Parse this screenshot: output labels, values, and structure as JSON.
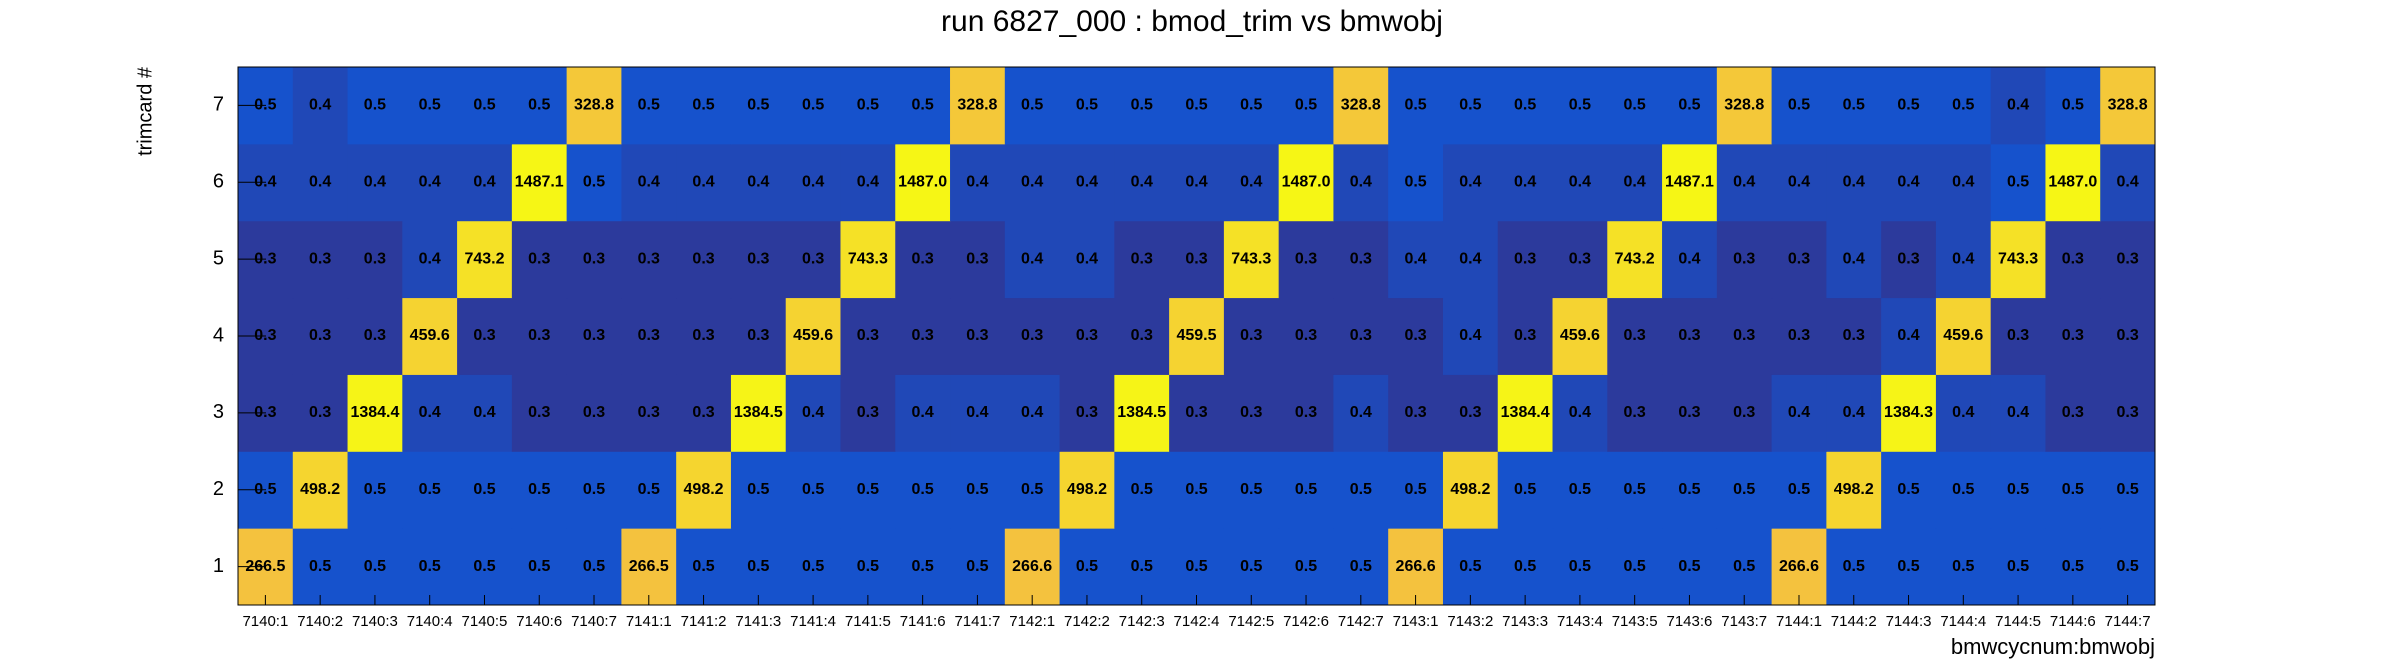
{
  "chart_data": {
    "type": "heatmap",
    "title": "run 6827_000 : bmod_trim vs bmwobj",
    "x_label": "bmwcycnum:bmwobj",
    "y_label": "trimcard #",
    "categories": [
      "7140:1",
      "7140:2",
      "7140:3",
      "7140:4",
      "7140:5",
      "7140:6",
      "7140:7",
      "7141:1",
      "7141:2",
      "7141:3",
      "7141:4",
      "7141:5",
      "7141:6",
      "7141:7",
      "7142:1",
      "7142:2",
      "7142:3",
      "7142:4",
      "7142:5",
      "7142:6",
      "7142:7",
      "7143:1",
      "7143:2",
      "7143:3",
      "7143:4",
      "7143:5",
      "7143:6",
      "7143:7",
      "7144:1",
      "7144:2",
      "7144:3",
      "7144:4",
      "7144:5",
      "7144:6",
      "7144:7"
    ],
    "y_categories": [
      1,
      2,
      3,
      4,
      5,
      6,
      7
    ],
    "values": [
      [
        266.5,
        0.5,
        0.5,
        0.5,
        0.5,
        0.5,
        0.5,
        266.5,
        0.5,
        0.5,
        0.5,
        0.5,
        0.5,
        0.5,
        266.6,
        0.5,
        0.5,
        0.5,
        0.5,
        0.5,
        0.5,
        266.6,
        0.5,
        0.5,
        0.5,
        0.5,
        0.5,
        0.5,
        266.6,
        0.5,
        0.5,
        0.5,
        0.5,
        0.5,
        0.5
      ],
      [
        0.5,
        498.2,
        0.5,
        0.5,
        0.5,
        0.5,
        0.5,
        0.5,
        498.2,
        0.5,
        0.5,
        0.5,
        0.5,
        0.5,
        0.5,
        498.2,
        0.5,
        0.5,
        0.5,
        0.5,
        0.5,
        0.5,
        498.2,
        0.5,
        0.5,
        0.5,
        0.5,
        0.5,
        0.5,
        498.2,
        0.5,
        0.5,
        0.5,
        0.5,
        0.5
      ],
      [
        0.3,
        0.3,
        1384.4,
        0.4,
        0.4,
        0.3,
        0.3,
        0.3,
        0.3,
        1384.5,
        0.4,
        0.3,
        0.4,
        0.4,
        0.4,
        0.3,
        1384.5,
        0.3,
        0.3,
        0.3,
        0.4,
        0.3,
        0.3,
        1384.4,
        0.4,
        0.3,
        0.3,
        0.3,
        0.4,
        0.4,
        1384.3,
        0.4,
        0.4,
        0.3,
        0.3
      ],
      [
        0.3,
        0.3,
        0.3,
        459.6,
        0.3,
        0.3,
        0.3,
        0.3,
        0.3,
        0.3,
        459.6,
        0.3,
        0.3,
        0.3,
        0.3,
        0.3,
        0.3,
        459.5,
        0.3,
        0.3,
        0.3,
        0.3,
        0.4,
        0.3,
        459.6,
        0.3,
        0.3,
        0.3,
        0.3,
        0.3,
        0.4,
        459.6,
        0.3,
        0.3,
        0.3
      ],
      [
        0.3,
        0.3,
        0.3,
        0.4,
        743.2,
        0.3,
        0.3,
        0.3,
        0.3,
        0.3,
        0.3,
        743.3,
        0.3,
        0.3,
        0.4,
        0.4,
        0.3,
        0.3,
        743.3,
        0.3,
        0.3,
        0.4,
        0.4,
        0.3,
        0.3,
        743.2,
        0.4,
        0.3,
        0.3,
        0.4,
        0.3,
        0.4,
        743.3,
        0.3,
        0.3
      ],
      [
        0.4,
        0.4,
        0.4,
        0.4,
        0.4,
        1487.1,
        0.5,
        0.4,
        0.4,
        0.4,
        0.4,
        0.4,
        1487.0,
        0.4,
        0.4,
        0.4,
        0.4,
        0.4,
        0.4,
        1487.0,
        0.4,
        0.5,
        0.4,
        0.4,
        0.4,
        0.4,
        1487.1,
        0.4,
        0.4,
        0.4,
        0.4,
        0.4,
        0.5,
        1487.0,
        0.4
      ],
      [
        0.5,
        0.4,
        0.5,
        0.5,
        0.5,
        0.5,
        328.8,
        0.5,
        0.5,
        0.5,
        0.5,
        0.5,
        0.5,
        328.8,
        0.5,
        0.5,
        0.5,
        0.5,
        0.5,
        0.5,
        328.8,
        0.5,
        0.5,
        0.5,
        0.5,
        0.5,
        0.5,
        328.8,
        0.5,
        0.5,
        0.5,
        0.5,
        0.4,
        0.5,
        328.8
      ]
    ],
    "value_labels": [
      [
        "266.5",
        "0.5",
        "0.5",
        "0.5",
        "0.5",
        "0.5",
        "0.5",
        "266.5",
        "0.5",
        "0.5",
        "0.5",
        "0.5",
        "0.5",
        "0.5",
        "266.6",
        "0.5",
        "0.5",
        "0.5",
        "0.5",
        "0.5",
        "0.5",
        "266.6",
        "0.5",
        "0.5",
        "0.5",
        "0.5",
        "0.5",
        "0.5",
        "266.6",
        "0.5",
        "0.5",
        "0.5",
        "0.5",
        "0.5",
        "0.5"
      ],
      [
        "0.5",
        "498.2",
        "0.5",
        "0.5",
        "0.5",
        "0.5",
        "0.5",
        "0.5",
        "498.2",
        "0.5",
        "0.5",
        "0.5",
        "0.5",
        "0.5",
        "0.5",
        "498.2",
        "0.5",
        "0.5",
        "0.5",
        "0.5",
        "0.5",
        "0.5",
        "498.2",
        "0.5",
        "0.5",
        "0.5",
        "0.5",
        "0.5",
        "0.5",
        "498.2",
        "0.5",
        "0.5",
        "0.5",
        "0.5",
        "0.5"
      ],
      [
        "0.3",
        "0.3",
        "1384.4",
        "0.4",
        "0.4",
        "0.3",
        "0.3",
        "0.3",
        "0.3",
        "1384.5",
        "0.4",
        "0.3",
        "0.4",
        "0.4",
        "0.4",
        "0.3",
        "1384.5",
        "0.3",
        "0.3",
        "0.3",
        "0.4",
        "0.3",
        "0.3",
        "1384.4",
        "0.4",
        "0.3",
        "0.3",
        "0.3",
        "0.4",
        "0.4",
        "1384.3",
        "0.4",
        "0.4",
        "0.3",
        "0.3"
      ],
      [
        "0.3",
        "0.3",
        "0.3",
        "459.6",
        "0.3",
        "0.3",
        "0.3",
        "0.3",
        "0.3",
        "0.3",
        "459.6",
        "0.3",
        "0.3",
        "0.3",
        "0.3",
        "0.3",
        "0.3",
        "459.5",
        "0.3",
        "0.3",
        "0.3",
        "0.3",
        "0.4",
        "0.3",
        "459.6",
        "0.3",
        "0.3",
        "0.3",
        "0.3",
        "0.3",
        "0.4",
        "459.6",
        "0.3",
        "0.3",
        "0.3"
      ],
      [
        "0.3",
        "0.3",
        "0.3",
        "0.4",
        "743.2",
        "0.3",
        "0.3",
        "0.3",
        "0.3",
        "0.3",
        "0.3",
        "743.3",
        "0.3",
        "0.3",
        "0.4",
        "0.4",
        "0.3",
        "0.3",
        "743.3",
        "0.3",
        "0.3",
        "0.4",
        "0.4",
        "0.3",
        "0.3",
        "743.2",
        "0.4",
        "0.3",
        "0.3",
        "0.4",
        "0.3",
        "0.4",
        "743.3",
        "0.3",
        "0.3"
      ],
      [
        "0.4",
        "0.4",
        "0.4",
        "0.4",
        "0.4",
        "1487.1",
        "0.5",
        "0.4",
        "0.4",
        "0.4",
        "0.4",
        "0.4",
        "1487.0",
        "0.4",
        "0.4",
        "0.4",
        "0.4",
        "0.4",
        "0.4",
        "1487.0",
        "0.4",
        "0.5",
        "0.4",
        "0.4",
        "0.4",
        "0.4",
        "1487.1",
        "0.4",
        "0.4",
        "0.4",
        "0.4",
        "0.4",
        "0.5",
        "1487.0",
        "0.4"
      ],
      [
        "0.5",
        "0.4",
        "0.5",
        "0.5",
        "0.5",
        "0.5",
        "328.8",
        "0.5",
        "0.5",
        "0.5",
        "0.5",
        "0.5",
        "0.5",
        "328.8",
        "0.5",
        "0.5",
        "0.5",
        "0.5",
        "0.5",
        "0.5",
        "328.8",
        "0.5",
        "0.5",
        "0.5",
        "0.5",
        "0.5",
        "0.5",
        "328.8",
        "0.5",
        "0.5",
        "0.5",
        "0.5",
        "0.4",
        "0.5",
        "328.8"
      ]
    ]
  }
}
